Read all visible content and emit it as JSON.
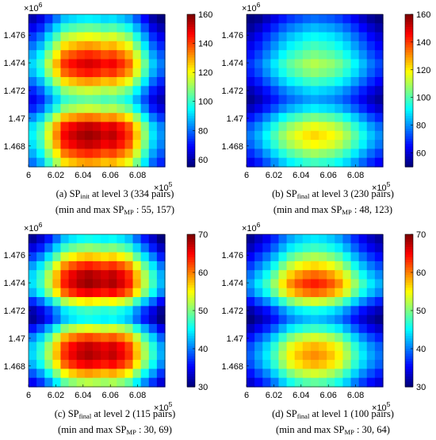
{
  "figure": {
    "panels": [
      {
        "id": "a",
        "caption": {
          "prefix": "(a) SP",
          "sub": "init",
          "suffix": " at level 3 (334 pairs)",
          "line2_prefix": "(min and max SP",
          "line2_sub": "MP",
          "line2_suffix": " : 55, 157)"
        }
      },
      {
        "id": "b",
        "caption": {
          "prefix": "(b) SP",
          "sub": "final",
          "suffix": " at level 3 (230 pairs)",
          "line2_prefix": "(min and max SP",
          "line2_sub": "MP",
          "line2_suffix": " : 48, 123)"
        }
      },
      {
        "id": "c",
        "caption": {
          "prefix": "(c) SP",
          "sub": "final",
          "suffix": " at level 2 (115 pairs)",
          "line2_prefix": "(min and max SP",
          "line2_sub": "MP",
          "line2_suffix": " : 30, 69)"
        }
      },
      {
        "id": "d",
        "caption": {
          "prefix": "(d) SP",
          "sub": "final",
          "suffix": " at level 1 (100 pairs)",
          "line2_prefix": "(min and max SP",
          "line2_sub": "MP",
          "line2_suffix": " : 30, 64)"
        }
      }
    ]
  },
  "chart_data": [
    {
      "type": "heatmap",
      "panel": "a",
      "x_exponent_label": "×10^5",
      "y_exponent_label": "×10^6",
      "xlim": [
        600000,
        610000
      ],
      "ylim": [
        1466500,
        1477500
      ],
      "x_ticks": [
        "6",
        "6.02",
        "6.04",
        "6.06",
        "6.08"
      ],
      "y_ticks": [
        "1.476",
        "1.474",
        "1.472",
        "1.47",
        "1.468"
      ],
      "colorbar": {
        "min": 55,
        "max": 160,
        "ticks": [
          "60",
          "80",
          "100",
          "120",
          "140",
          "160"
        ]
      },
      "value_range": [
        55,
        157
      ],
      "colormap": "jet",
      "x_profile": [
        82,
        92,
        110,
        128,
        145,
        150,
        154,
        156,
        154,
        150,
        152,
        146,
        138,
        120,
        100,
        80,
        70
      ],
      "y_profile": [
        70,
        82,
        96,
        108,
        120,
        128,
        122,
        108,
        92,
        82,
        92,
        112,
        130,
        134,
        130,
        120,
        108
      ]
    },
    {
      "type": "heatmap",
      "panel": "b",
      "x_exponent_label": "×10^5",
      "y_exponent_label": "×10^6",
      "xlim": [
        600000,
        610000
      ],
      "ylim": [
        1466500,
        1477500
      ],
      "x_ticks": [
        "6",
        "6.02",
        "6.04",
        "6.06",
        "6.08"
      ],
      "y_ticks": [
        "1.476",
        "1.474",
        "1.472",
        "1.47",
        "1.468"
      ],
      "colorbar": {
        "min": 50,
        "max": 160,
        "ticks": [
          "60",
          "80",
          "100",
          "120",
          "140",
          "160"
        ]
      },
      "value_range": [
        48,
        123
      ],
      "colormap": "jet",
      "x_profile": [
        74,
        80,
        88,
        96,
        104,
        110,
        114,
        118,
        120,
        118,
        116,
        112,
        106,
        98,
        90,
        82,
        76
      ],
      "y_profile": [
        70,
        78,
        86,
        92,
        98,
        104,
        100,
        92,
        82,
        76,
        84,
        98,
        110,
        116,
        112,
        102,
        92
      ]
    },
    {
      "type": "heatmap",
      "panel": "c",
      "x_exponent_label": "×10^5",
      "y_exponent_label": "×10^6",
      "xlim": [
        600000,
        610000
      ],
      "ylim": [
        1466500,
        1477500
      ],
      "x_ticks": [
        "6",
        "6.02",
        "6.04",
        "6.06",
        "6.08"
      ],
      "y_ticks": [
        "1.476",
        "1.474",
        "1.472",
        "1.47",
        "1.468"
      ],
      "colorbar": {
        "min": 30,
        "max": 70,
        "ticks": [
          "30",
          "40",
          "50",
          "60",
          "70"
        ]
      },
      "value_range": [
        30,
        69
      ],
      "colormap": "jet",
      "x_profile": [
        38,
        42,
        48,
        55,
        62,
        65,
        67,
        68,
        67,
        66,
        67,
        65,
        62,
        55,
        48,
        42,
        36
      ],
      "y_profile": [
        40,
        46,
        54,
        62,
        67,
        68,
        64,
        52,
        42,
        40,
        50,
        60,
        66,
        67,
        64,
        56,
        48
      ]
    },
    {
      "type": "heatmap",
      "panel": "d",
      "x_exponent_label": "×10^5",
      "y_exponent_label": "×10^6",
      "xlim": [
        600000,
        610000
      ],
      "ylim": [
        1466500,
        1477500
      ],
      "x_ticks": [
        "6",
        "6.02",
        "6.04",
        "6.06",
        "6.08"
      ],
      "y_ticks": [
        "1.476",
        "1.474",
        "1.472",
        "1.47",
        "1.468"
      ],
      "colorbar": {
        "min": 30,
        "max": 70,
        "ticks": [
          "30",
          "40",
          "50",
          "60",
          "70"
        ]
      },
      "value_range": [
        30,
        64
      ],
      "colormap": "jet",
      "x_profile": [
        34,
        38,
        42,
        47,
        53,
        58,
        61,
        63,
        64,
        63,
        61,
        58,
        53,
        47,
        42,
        38,
        35
      ],
      "y_profile": [
        38,
        42,
        48,
        54,
        60,
        64,
        60,
        50,
        40,
        36,
        42,
        50,
        56,
        58,
        56,
        50,
        44
      ]
    }
  ]
}
